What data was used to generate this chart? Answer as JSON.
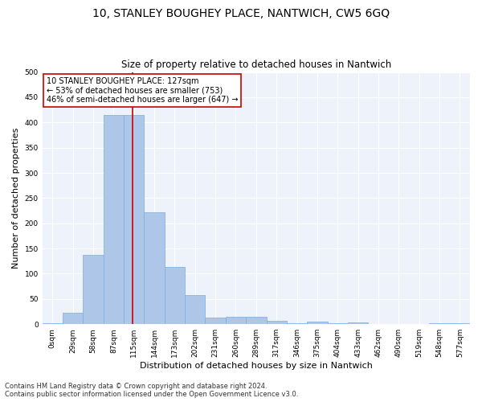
{
  "title": "10, STANLEY BOUGHEY PLACE, NANTWICH, CW5 6GQ",
  "subtitle": "Size of property relative to detached houses in Nantwich",
  "xlabel": "Distribution of detached houses by size in Nantwich",
  "ylabel": "Number of detached properties",
  "bin_labels": [
    "0sqm",
    "29sqm",
    "58sqm",
    "87sqm",
    "115sqm",
    "144sqm",
    "173sqm",
    "202sqm",
    "231sqm",
    "260sqm",
    "289sqm",
    "317sqm",
    "346sqm",
    "375sqm",
    "404sqm",
    "433sqm",
    "462sqm",
    "490sqm",
    "519sqm",
    "548sqm",
    "577sqm"
  ],
  "bar_heights": [
    2,
    22,
    137,
    415,
    415,
    222,
    113,
    57,
    13,
    15,
    15,
    7,
    2,
    5,
    2,
    3,
    0,
    0,
    0,
    2,
    2
  ],
  "bar_color": "#aec6e8",
  "bar_edge_color": "#7aace0",
  "vline_color": "#cc0000",
  "annotation_text": "10 STANLEY BOUGHEY PLACE: 127sqm\n← 53% of detached houses are smaller (753)\n46% of semi-detached houses are larger (647) →",
  "annotation_box_color": "#ffffff",
  "annotation_box_edge": "#cc0000",
  "ylim": [
    0,
    500
  ],
  "yticks": [
    0,
    50,
    100,
    150,
    200,
    250,
    300,
    350,
    400,
    450,
    500
  ],
  "footer_line1": "Contains HM Land Registry data © Crown copyright and database right 2024.",
  "footer_line2": "Contains public sector information licensed under the Open Government Licence v3.0.",
  "bg_color": "#eef2fa",
  "grid_color": "#ffffff",
  "title_fontsize": 10,
  "subtitle_fontsize": 8.5,
  "xlabel_fontsize": 8,
  "ylabel_fontsize": 8,
  "tick_fontsize": 6.5,
  "annot_fontsize": 7,
  "footer_fontsize": 6
}
